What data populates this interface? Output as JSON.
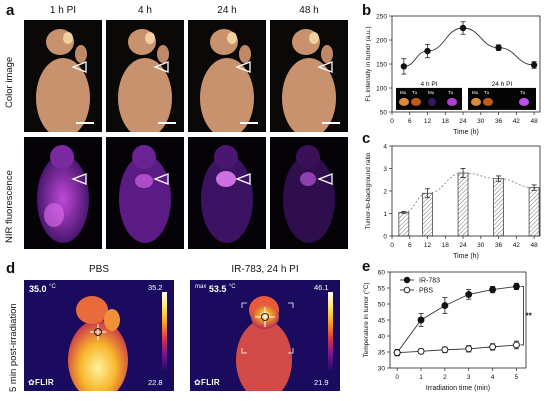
{
  "panels": {
    "a": "a",
    "b": "b",
    "c": "c",
    "d": "d",
    "e": "e"
  },
  "panel_a": {
    "columns": [
      "1 h PI",
      "4 h",
      "24 h",
      "48 h"
    ],
    "rows": [
      "Color image",
      "NIR fluorescence"
    ]
  },
  "panel_b": {
    "inset_left": "4 h PI",
    "inset_right": "24 h PI",
    "inset_tags_left": [
      "Mu",
      "Tu",
      "Mu",
      "Tu"
    ],
    "inset_tags_right": [
      "Mu",
      "Tu",
      "Tu"
    ]
  },
  "panel_d": {
    "row_label": "5 min post-irradiation",
    "left_title": "PBS",
    "right_title": "IR-783, 24 h PI",
    "left_temp": "35.0",
    "right_prefix": "max",
    "right_temp": "53.5",
    "unit": "°C",
    "left_scale_top": "35.2",
    "left_scale_bottom": "22.8",
    "right_scale_top": "46.1",
    "right_scale_bottom": "21.9",
    "brand": "FLIR",
    "colors": {
      "hot": "#ffe566",
      "mid": "#d6334b",
      "cold": "#24096a"
    }
  },
  "chart_data": [
    {
      "type": "line",
      "id": "b",
      "xlabel": "Time (h)",
      "ylabel": "FL intensity in tumor (a.u.)",
      "x_ticks": [
        0,
        6,
        12,
        18,
        24,
        30,
        36,
        42,
        48
      ],
      "y_ticks": [
        50,
        100,
        150,
        200,
        250
      ],
      "xlim": [
        0,
        50
      ],
      "ylim": [
        50,
        250
      ],
      "series": [
        {
          "x": [
            4,
            12,
            24,
            36,
            48
          ],
          "values": [
            145,
            177,
            225,
            184,
            148
          ],
          "error": [
            16,
            14,
            13,
            6,
            7
          ]
        }
      ]
    },
    {
      "type": "bar",
      "id": "c",
      "xlabel": "Time (h)",
      "ylabel": "Tumor-to-background ratio",
      "x_ticks": [
        0,
        6,
        12,
        18,
        24,
        30,
        36,
        42,
        48
      ],
      "y_ticks": [
        0,
        1,
        2,
        3,
        4
      ],
      "xlim": [
        0,
        50
      ],
      "ylim": [
        0,
        4
      ],
      "x": [
        4,
        12,
        24,
        36,
        48
      ],
      "values": [
        1.05,
        1.9,
        2.8,
        2.55,
        2.15
      ],
      "error": [
        0.04,
        0.2,
        0.2,
        0.12,
        0.12
      ]
    },
    {
      "type": "line",
      "id": "e",
      "xlabel": "Irradiation time (min)",
      "ylabel": "Temperature in tumor (°C)",
      "x_ticks": [
        0,
        1,
        2,
        3,
        4,
        5
      ],
      "y_ticks": [
        30,
        35,
        40,
        45,
        50,
        55,
        60
      ],
      "xlim": [
        -0.3,
        5.4
      ],
      "ylim": [
        30,
        60
      ],
      "significance": "**",
      "series": [
        {
          "name": "IR-783",
          "x": [
            0,
            1,
            2,
            3,
            4,
            5
          ],
          "values": [
            34.8,
            45,
            49.5,
            53,
            54.5,
            55.5
          ],
          "error": [
            1,
            2,
            2.5,
            1.5,
            1,
            1
          ],
          "marker": "filled"
        },
        {
          "name": "PBS",
          "x": [
            0,
            1,
            2,
            3,
            4,
            5
          ],
          "values": [
            34.8,
            35.2,
            35.7,
            36.0,
            36.6,
            37.2
          ],
          "error": [
            0.8,
            0.8,
            0.9,
            1,
            1,
            1.2
          ],
          "marker": "open"
        }
      ]
    }
  ]
}
